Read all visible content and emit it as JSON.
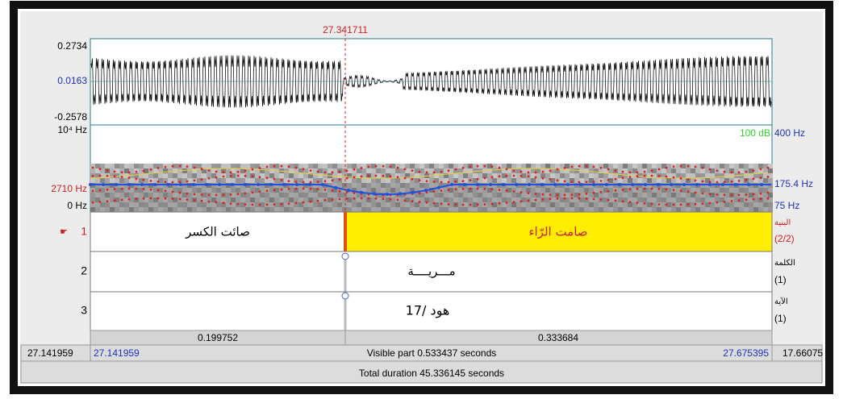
{
  "editor": {
    "cursor_time": "27.341711",
    "waveform": {
      "max": "0.2734",
      "mid": "0.0163",
      "min": "-0.2578"
    },
    "spectrogram": {
      "top": "10⁴ Hz",
      "formant": "2710 Hz",
      "bottom": "0 Hz",
      "intensity_top": "100 dB",
      "pitch_top": "400 Hz",
      "pitch_cursor": "175.4 Hz",
      "pitch_bottom": "75 Hz"
    },
    "tiers": [
      {
        "number": "1",
        "name": "البنية",
        "count": "(2/2)",
        "intervals": [
          "صائت   الكسر",
          "صامت   الرّاء"
        ]
      },
      {
        "number": "2",
        "name": "الكلمة",
        "count": "(1)",
        "text": "مـــريــــة"
      },
      {
        "number": "3",
        "name": "الآية",
        "count": "(1)",
        "text": "هود /17"
      }
    ],
    "durations": [
      "0.199752",
      "0.333684"
    ],
    "footer": {
      "window_start": "27.141959",
      "visible_start": "27.141959",
      "visible_part": "Visible part 0.533437 seconds",
      "visible_end": "27.675395",
      "window_end": "17.66075",
      "total": "Total duration 45.336145 seconds"
    }
  }
}
